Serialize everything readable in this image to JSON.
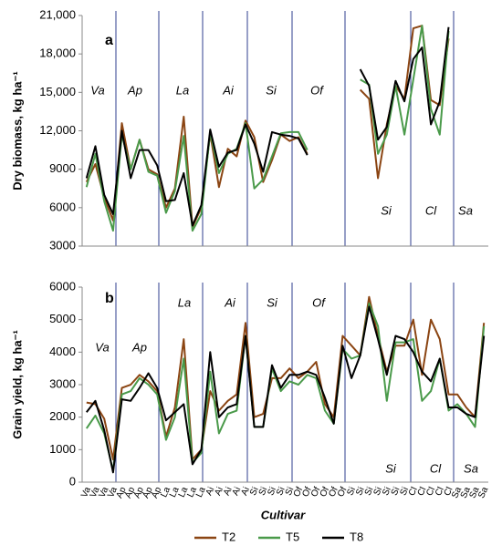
{
  "chart_data": [
    {
      "type": "line",
      "ylabel": "Dry biomass, kg ha⁻¹",
      "label": "a",
      "annotations": [
        "Va",
        "Ap",
        "La",
        "Ai",
        "Si",
        "Of",
        "Si",
        "Cl",
        "Sa"
      ],
      "ylim": [
        3000,
        21000
      ],
      "yticks": [
        {
          "value": 3000,
          "label": "3000"
        },
        {
          "value": 6000,
          "label": "6000"
        },
        {
          "value": 9000,
          "label": "9000"
        },
        {
          "value": 12000,
          "label": "12,000"
        },
        {
          "value": 15000,
          "label": "15,000"
        },
        {
          "value": 18000,
          "label": "18,000"
        },
        {
          "value": 21000,
          "label": "21,000"
        }
      ],
      "series": [
        {
          "color": "#8b4513",
          "values": [
            8000,
            9400,
            6800,
            5000,
            12600,
            9000,
            11300,
            9000,
            8600,
            6000,
            7500,
            13100,
            4500,
            6000,
            11800,
            7600,
            10600,
            10000,
            12800,
            11500,
            8000,
            9700,
            11700,
            11200,
            11500,
            10200,
            null,
            null,
            null,
            null,
            null,
            15200,
            14500,
            8300,
            12500,
            15500,
            14500,
            20000,
            20200,
            14400,
            14000,
            19200,
            null,
            null,
            null,
            null
          ]
        },
        {
          "color": "#4a9a4a",
          "values": [
            7600,
            10200,
            6500,
            4200,
            11700,
            9000,
            11300,
            8800,
            8500,
            5600,
            7300,
            11600,
            4200,
            5500,
            11900,
            8700,
            10200,
            10600,
            12600,
            7500,
            8200,
            10000,
            11800,
            11900,
            11900,
            10500,
            null,
            null,
            null,
            null,
            null,
            16000,
            15600,
            10200,
            11700,
            15500,
            11700,
            16000,
            20200,
            13700,
            11700,
            19800,
            null,
            null,
            null,
            null
          ]
        },
        {
          "color": "#000000",
          "values": [
            8300,
            10800,
            7000,
            5500,
            12000,
            8300,
            10500,
            10500,
            9300,
            6500,
            6600,
            8700,
            4600,
            6200,
            12100,
            9200,
            10300,
            10500,
            12500,
            11000,
            8800,
            11900,
            11700,
            11600,
            11400,
            10100,
            null,
            null,
            null,
            null,
            null,
            16800,
            15500,
            11300,
            12300,
            15900,
            14300,
            17600,
            18500,
            12500,
            14300,
            20100,
            null,
            null,
            null,
            null
          ]
        }
      ]
    },
    {
      "type": "line",
      "ylabel": "Grain yield, kg ha⁻¹",
      "label": "b",
      "xlabel": "Cultivar",
      "annotations": [
        "Va",
        "Ap",
        "La",
        "Ai",
        "Si",
        "Of",
        "Si",
        "Cl",
        "Sa"
      ],
      "categories": [
        "Va",
        "Va",
        "Va",
        "Va",
        "Ap",
        "Ap",
        "Ap",
        "Ap",
        "Ap",
        "La",
        "La",
        "La",
        "La",
        "La",
        "Ai",
        "Ai",
        "Ai",
        "Ai",
        "Ai",
        "Si",
        "Si",
        "Si",
        "Si",
        "Si",
        "Of",
        "Of",
        "Of",
        "Of",
        "Of",
        "Of",
        "Si",
        "Si",
        "Si",
        "Si",
        "Si",
        "Si",
        "Si",
        "Cl",
        "Cl",
        "Cl",
        "Cl",
        "Cl",
        "Sa",
        "Sa",
        "Sa",
        "Sa"
      ],
      "ylim": [
        0,
        6000
      ],
      "yticks": [
        0,
        1000,
        2000,
        3000,
        4000,
        5000,
        6000
      ],
      "series": [
        {
          "name": "T2",
          "color": "#8b4513",
          "values": [
            2450,
            2400,
            1950,
            700,
            2900,
            3000,
            3300,
            3100,
            2800,
            1400,
            2300,
            4400,
            700,
            1000,
            2800,
            2200,
            2500,
            2700,
            4900,
            2000,
            2100,
            3200,
            3200,
            3500,
            3200,
            3400,
            3700,
            2400,
            2000,
            4500,
            4200,
            3900,
            5700,
            4500,
            3400,
            4200,
            4200,
            5000,
            3300,
            5000,
            4400,
            2700,
            2700,
            2300,
            2000,
            4900
          ]
        },
        {
          "name": "T5",
          "color": "#4a9a4a",
          "values": [
            1650,
            2050,
            1500,
            350,
            2700,
            2800,
            3200,
            3000,
            2700,
            1300,
            2000,
            3800,
            600,
            900,
            3400,
            1500,
            2100,
            2200,
            4500,
            1700,
            1700,
            3500,
            2800,
            3100,
            3000,
            3300,
            3200,
            2200,
            1800,
            4100,
            3800,
            3900,
            5500,
            4800,
            2500,
            4300,
            4300,
            4400,
            2500,
            2800,
            3800,
            2200,
            2400,
            2100,
            1700,
            4800
          ]
        },
        {
          "name": "T8",
          "color": "#000000",
          "values": [
            2150,
            2500,
            1600,
            300,
            2550,
            2500,
            2900,
            3350,
            2900,
            1900,
            2150,
            2400,
            550,
            1000,
            4000,
            2000,
            2300,
            2400,
            4500,
            1700,
            1700,
            3600,
            2900,
            3300,
            3300,
            3400,
            3300,
            2600,
            1800,
            4200,
            3200,
            3900,
            5400,
            4400,
            3300,
            4500,
            4400,
            4000,
            3400,
            3100,
            3800,
            2300,
            2300,
            2100,
            2000,
            4500
          ]
        }
      ]
    }
  ]
}
